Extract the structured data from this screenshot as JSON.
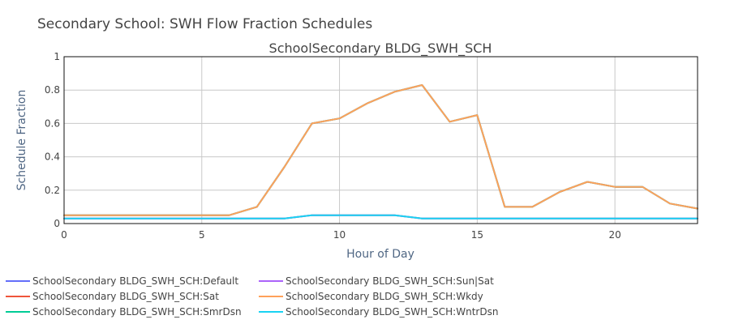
{
  "chart_data": {
    "type": "line",
    "title": "Secondary School: SWH Flow Fraction Schedules",
    "subtitle": "SchoolSecondary BLDG_SWH_SCH",
    "xlabel": "Hour of Day",
    "ylabel": "Schedule Fraction",
    "xlim": [
      0,
      23
    ],
    "ylim": [
      0,
      1
    ],
    "x_ticks": [
      0,
      5,
      10,
      15,
      20
    ],
    "y_ticks": [
      0,
      0.2,
      0.4,
      0.6,
      0.8,
      1
    ],
    "y_tick_labels": [
      "0",
      "0.2",
      "0.4",
      "0.6",
      "0.8",
      "1"
    ],
    "grid": true,
    "legend_position": "bottom",
    "x": [
      0,
      1,
      2,
      3,
      4,
      5,
      6,
      7,
      8,
      9,
      10,
      11,
      12,
      13,
      14,
      15,
      16,
      17,
      18,
      19,
      20,
      21,
      22,
      23
    ],
    "series": [
      {
        "name": "SchoolSecondary BLDG_SWH_SCH:Default",
        "color": "#636efa",
        "values": [
          0.05,
          0.05,
          0.05,
          0.05,
          0.05,
          0.05,
          0.05,
          0.1,
          0.34,
          0.6,
          0.63,
          0.72,
          0.79,
          0.83,
          0.61,
          0.65,
          0.1,
          0.1,
          0.19,
          0.25,
          0.22,
          0.22,
          0.12,
          0.09
        ]
      },
      {
        "name": "SchoolSecondary BLDG_SWH_SCH:Sat",
        "color": "#ef553b",
        "values": [
          0.03,
          0.03,
          0.03,
          0.03,
          0.03,
          0.03,
          0.03,
          0.03,
          0.03,
          0.05,
          0.05,
          0.05,
          0.05,
          0.03,
          0.03,
          0.03,
          0.03,
          0.03,
          0.03,
          0.03,
          0.03,
          0.03,
          0.03,
          0.03
        ]
      },
      {
        "name": "SchoolSecondary BLDG_SWH_SCH:SmrDsn",
        "color": "#00cc96",
        "values": [
          0.05,
          0.05,
          0.05,
          0.05,
          0.05,
          0.05,
          0.05,
          0.1,
          0.34,
          0.6,
          0.63,
          0.72,
          0.79,
          0.83,
          0.61,
          0.65,
          0.1,
          0.1,
          0.19,
          0.25,
          0.22,
          0.22,
          0.12,
          0.09
        ]
      },
      {
        "name": "SchoolSecondary BLDG_SWH_SCH:Sun|Sat",
        "color": "#ab63fa",
        "values": [
          0.03,
          0.03,
          0.03,
          0.03,
          0.03,
          0.03,
          0.03,
          0.03,
          0.03,
          0.05,
          0.05,
          0.05,
          0.05,
          0.03,
          0.03,
          0.03,
          0.03,
          0.03,
          0.03,
          0.03,
          0.03,
          0.03,
          0.03,
          0.03
        ]
      },
      {
        "name": "SchoolSecondary BLDG_SWH_SCH:Wkdy",
        "color": "#ffa15a",
        "values": [
          0.05,
          0.05,
          0.05,
          0.05,
          0.05,
          0.05,
          0.05,
          0.1,
          0.34,
          0.6,
          0.63,
          0.72,
          0.79,
          0.83,
          0.61,
          0.65,
          0.1,
          0.1,
          0.19,
          0.25,
          0.22,
          0.22,
          0.12,
          0.09
        ]
      },
      {
        "name": "SchoolSecondary BLDG_SWH_SCH:WntrDsn",
        "color": "#19d3f3",
        "values": [
          0.03,
          0.03,
          0.03,
          0.03,
          0.03,
          0.03,
          0.03,
          0.03,
          0.03,
          0.05,
          0.05,
          0.05,
          0.05,
          0.03,
          0.03,
          0.03,
          0.03,
          0.03,
          0.03,
          0.03,
          0.03,
          0.03,
          0.03,
          0.03
        ]
      }
    ]
  }
}
